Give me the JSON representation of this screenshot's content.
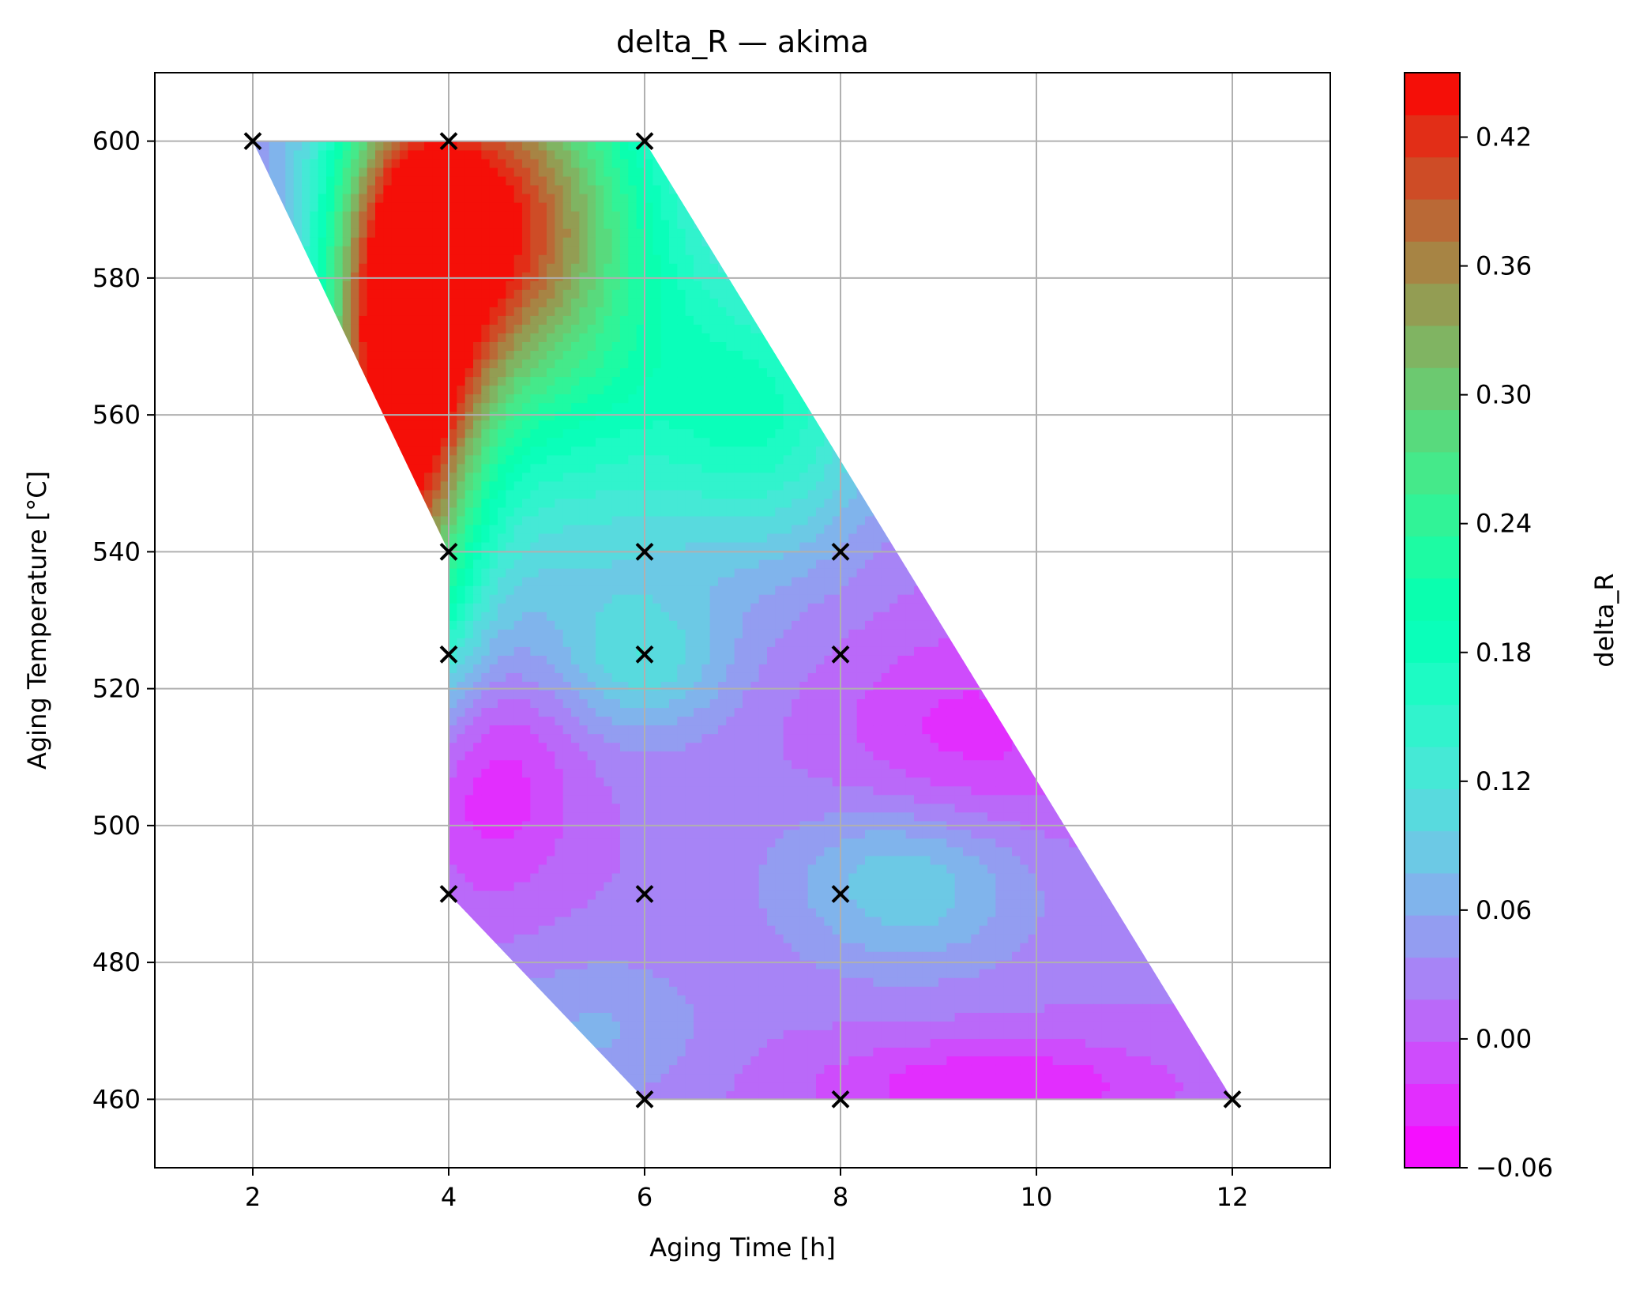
{
  "chart_data": {
    "type": "heatmap",
    "title": "delta_R — akima",
    "xlabel": "Aging Time [h]",
    "ylabel": "Aging Temperature [°C]",
    "colorbar_label": "delta_R",
    "xlim": [
      1,
      13
    ],
    "ylim": [
      450,
      610
    ],
    "x_ticks": [
      2,
      4,
      6,
      8,
      10,
      12
    ],
    "y_ticks": [
      460,
      480,
      500,
      520,
      540,
      560,
      580,
      600
    ],
    "colorbar_range": [
      -0.06,
      0.45
    ],
    "colorbar_ticks": [
      -0.06,
      0.0,
      0.06,
      0.12,
      0.18,
      0.24,
      0.3,
      0.36,
      0.42
    ],
    "colormap": "rainbow",
    "grid": true,
    "domain_polygon": [
      [
        2,
        600
      ],
      [
        6,
        600
      ],
      [
        12,
        460
      ],
      [
        6,
        460
      ],
      [
        4,
        490
      ],
      [
        4,
        540
      ]
    ],
    "sample_points": [
      {
        "x": 2,
        "y": 600
      },
      {
        "x": 4,
        "y": 600
      },
      {
        "x": 6,
        "y": 600
      },
      {
        "x": 4,
        "y": 540
      },
      {
        "x": 6,
        "y": 540
      },
      {
        "x": 8,
        "y": 540
      },
      {
        "x": 4,
        "y": 525
      },
      {
        "x": 6,
        "y": 525
      },
      {
        "x": 8,
        "y": 525
      },
      {
        "x": 4,
        "y": 490
      },
      {
        "x": 6,
        "y": 490
      },
      {
        "x": 8,
        "y": 490
      },
      {
        "x": 6,
        "y": 460
      },
      {
        "x": 8,
        "y": 460
      },
      {
        "x": 12,
        "y": 460
      }
    ],
    "field_features": [
      {
        "x": 3.5,
        "y": 562,
        "value": 0.43,
        "sx": 0.55,
        "sy": 28
      },
      {
        "x": 4.3,
        "y": 590,
        "value": 0.28,
        "sx": 0.9,
        "sy": 18
      },
      {
        "x": 5.2,
        "y": 580,
        "value": 0.2,
        "sx": 1.2,
        "sy": 30
      },
      {
        "x": 7.3,
        "y": 560,
        "value": 0.15,
        "sx": 0.8,
        "sy": 14
      },
      {
        "x": 6.0,
        "y": 524,
        "value": 0.09,
        "sx": 0.6,
        "sy": 7
      },
      {
        "x": 8.7,
        "y": 492,
        "value": 0.1,
        "sx": 0.9,
        "sy": 9
      },
      {
        "x": 4.3,
        "y": 507,
        "value": -0.05,
        "sx": 0.7,
        "sy": 12
      },
      {
        "x": 9.3,
        "y": 512,
        "value": -0.03,
        "sx": 1.0,
        "sy": 12
      },
      {
        "x": 9.6,
        "y": 462,
        "value": -0.04,
        "sx": 1.3,
        "sy": 5
      },
      {
        "x": 5.5,
        "y": 470,
        "value": 0.06,
        "sx": 0.8,
        "sy": 8
      },
      {
        "x": 2.4,
        "y": 598,
        "value": 0.03,
        "sx": 0.4,
        "sy": 4
      }
    ],
    "field_base": 0.02
  }
}
